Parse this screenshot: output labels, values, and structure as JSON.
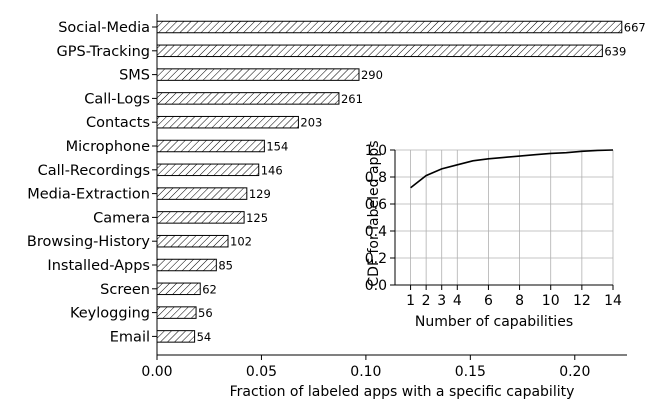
{
  "chart_data": [
    {
      "type": "bar",
      "orientation": "horizontal",
      "title": "",
      "xlabel": "Fraction of labeled apps with a specific capability",
      "ylabel": "",
      "xlim": [
        0.0,
        0.225
      ],
      "x_ticks": [
        "0.00",
        "0.05",
        "0.10",
        "0.15",
        "0.20"
      ],
      "grid": false,
      "bar_fill": "hatched",
      "categories": [
        "Social-Media",
        "GPS-Tracking",
        "SMS",
        "Call-Logs",
        "Contacts",
        "Microphone",
        "Call-Recordings",
        "Media-Extraction",
        "Camera",
        "Browsing-History",
        "Installed-Apps",
        "Screen",
        "Keylogging",
        "Email"
      ],
      "values": [
        0.2225,
        0.2132,
        0.0967,
        0.0871,
        0.0677,
        0.0514,
        0.0487,
        0.043,
        0.0417,
        0.034,
        0.0284,
        0.0207,
        0.0187,
        0.018
      ],
      "data_labels": [
        "667",
        "639",
        "290",
        "261",
        "203",
        "154",
        "146",
        "129",
        "125",
        "102",
        "85",
        "62",
        "56",
        "54"
      ]
    },
    {
      "type": "line",
      "placement": "inset, lower-right",
      "title": "",
      "xlabel": "Number of capabilities",
      "ylabel": "CDF for labeled apps",
      "xlim": [
        0,
        14
      ],
      "ylim": [
        0.0,
        1.0
      ],
      "x_ticks": [
        "1",
        "2",
        "3",
        "4",
        "6",
        "8",
        "10",
        "12",
        "14"
      ],
      "y_ticks": [
        "0.0",
        "0.2",
        "0.4",
        "0.6",
        "0.8",
        "1.0"
      ],
      "grid": true,
      "x": [
        1,
        2,
        3,
        4,
        5,
        6,
        7,
        8,
        9,
        10,
        11,
        12,
        13,
        14
      ],
      "y": [
        0.72,
        0.81,
        0.86,
        0.89,
        0.92,
        0.935,
        0.945,
        0.955,
        0.965,
        0.975,
        0.98,
        0.99,
        0.997,
        1.0
      ]
    }
  ]
}
